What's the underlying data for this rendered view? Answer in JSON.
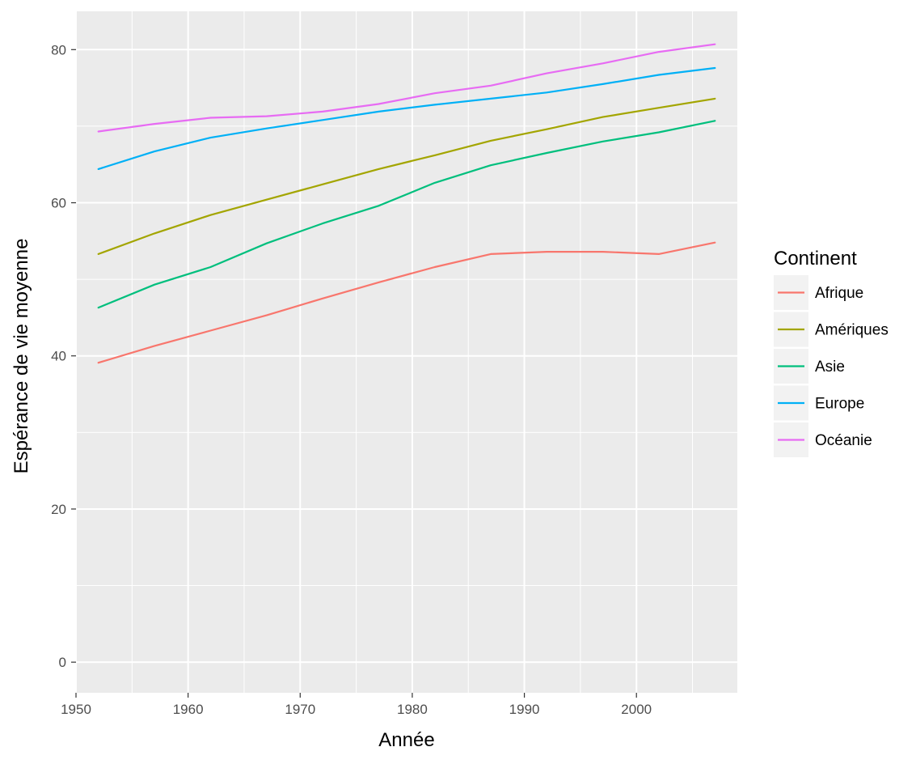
{
  "chart_data": {
    "type": "line",
    "title": "",
    "xlabel": "Année",
    "ylabel": "Espérance de vie moyenne",
    "xlim": [
      1950,
      2009
    ],
    "ylim": [
      -4,
      85
    ],
    "x_ticks": [
      1950,
      1960,
      1970,
      1980,
      1990,
      2000
    ],
    "y_ticks": [
      0,
      20,
      40,
      60,
      80
    ],
    "grid": true,
    "legend": {
      "title": "Continent",
      "position": "right"
    },
    "x": [
      1952,
      1957,
      1962,
      1967,
      1972,
      1977,
      1982,
      1987,
      1992,
      1997,
      2002,
      2007
    ],
    "series": [
      {
        "name": "Afrique",
        "color": "#F8766D",
        "values": [
          39.1,
          41.3,
          43.3,
          45.3,
          47.5,
          49.6,
          51.6,
          53.3,
          53.6,
          53.6,
          53.3,
          54.8
        ]
      },
      {
        "name": "Amériques",
        "color": "#A3A500",
        "values": [
          53.3,
          56.0,
          58.4,
          60.4,
          62.4,
          64.4,
          66.2,
          68.1,
          69.6,
          71.2,
          72.4,
          73.6
        ]
      },
      {
        "name": "Asie",
        "color": "#00BF7D",
        "values": [
          46.3,
          49.3,
          51.6,
          54.7,
          57.3,
          59.6,
          62.6,
          64.9,
          66.5,
          68.0,
          69.2,
          70.7
        ]
      },
      {
        "name": "Europe",
        "color": "#00B0F6",
        "values": [
          64.4,
          66.7,
          68.5,
          69.7,
          70.8,
          71.9,
          72.8,
          73.6,
          74.4,
          75.5,
          76.7,
          77.6
        ]
      },
      {
        "name": "Océanie",
        "color": "#E76BF3",
        "values": [
          69.3,
          70.3,
          71.1,
          71.3,
          71.9,
          72.9,
          74.3,
          75.3,
          76.9,
          78.2,
          79.7,
          80.7
        ]
      }
    ]
  }
}
